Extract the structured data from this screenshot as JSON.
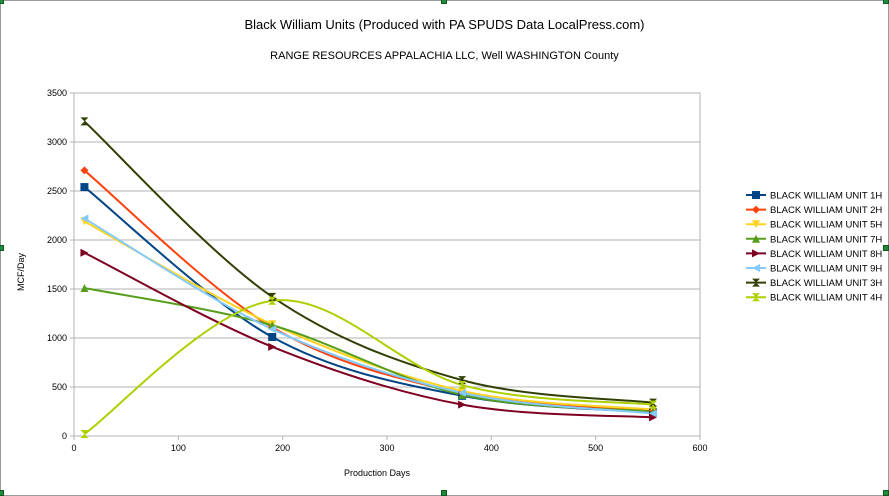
{
  "chart_data": {
    "type": "line",
    "title": "Black William Units (Produced with PA SPUDS Data LocalPress.com)",
    "subtitle": "RANGE RESOURCES APPALACHIA LLC, Well  WASHINGTON County",
    "xlabel": "Production Days",
    "ylabel": "MCF/Day",
    "xlim": [
      0,
      600
    ],
    "ylim": [
      0,
      3500
    ],
    "xticks": [
      0,
      100,
      200,
      300,
      400,
      500,
      600
    ],
    "yticks": [
      0,
      500,
      1000,
      1500,
      2000,
      2500,
      3000,
      3500
    ],
    "grid": "horizontal",
    "legend_position": "right",
    "x": [
      10,
      190,
      372,
      555
    ],
    "series": [
      {
        "name": "BLACK WILLIAM UNIT 1H",
        "color": "#004586",
        "marker": "square",
        "values": [
          2540,
          1010,
          410,
          240
        ]
      },
      {
        "name": "BLACK WILLIAM UNIT 2H",
        "color": "#ff420e",
        "marker": "diamond",
        "values": [
          2710,
          1110,
          440,
          260
        ]
      },
      {
        "name": "BLACK WILLIAM UNIT 5H",
        "color": "#ffd320",
        "marker": "triangle-down",
        "values": [
          2190,
          1140,
          460,
          270
        ]
      },
      {
        "name": "BLACK WILLIAM UNIT 7H",
        "color": "#579d1c",
        "marker": "triangle-up",
        "values": [
          1510,
          1130,
          420,
          250
        ]
      },
      {
        "name": "BLACK WILLIAM UNIT 8H",
        "color": "#7e0021",
        "marker": "triangle-right",
        "values": [
          1870,
          910,
          320,
          190
        ]
      },
      {
        "name": "BLACK WILLIAM UNIT 9H",
        "color": "#83caff",
        "marker": "triangle-left",
        "values": [
          2220,
          1090,
          440,
          230
        ]
      },
      {
        "name": "BLACK WILLIAM UNIT 3H",
        "color": "#314004",
        "marker": "bowtie",
        "values": [
          3210,
          1420,
          570,
          340
        ]
      },
      {
        "name": "BLACK WILLIAM UNIT 4H",
        "color": "#aecf00",
        "marker": "hourglass",
        "values": [
          20,
          1380,
          520,
          320
        ]
      }
    ]
  }
}
